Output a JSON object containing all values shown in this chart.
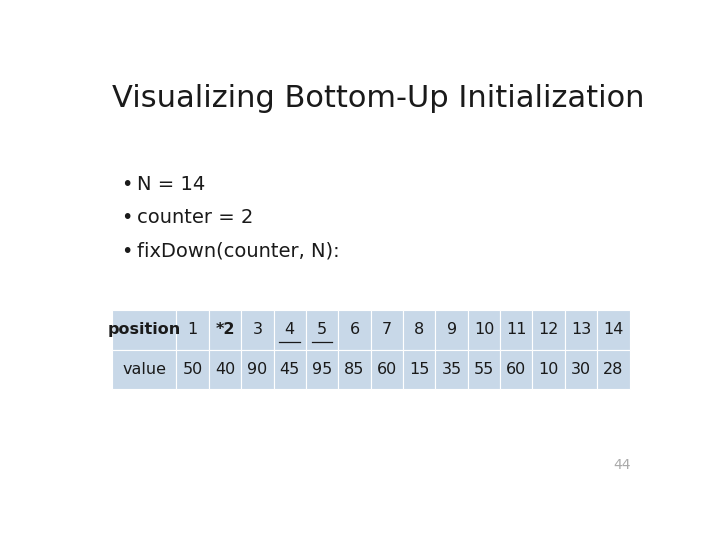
{
  "title": "Visualizing Bottom-Up Initialization",
  "bullet_texts": [
    "N = 14",
    "counter = 2",
    "fixDown(counter, N):"
  ],
  "positions": [
    "position",
    "1",
    "*2",
    "3",
    "4",
    "5",
    "6",
    "7",
    "8",
    "9",
    "10",
    "11",
    "12",
    "13",
    "14"
  ],
  "values": [
    "value",
    "50",
    "40",
    "90",
    "45",
    "95",
    "85",
    "60",
    "15",
    "35",
    "55",
    "60",
    "10",
    "30",
    "28"
  ],
  "underlined_col_indices": [
    4,
    5
  ],
  "table_bg": "#c8d8e8",
  "page_number": "44",
  "bg_color": "#ffffff",
  "title_fontsize": 22,
  "bullet_fontsize": 14,
  "table_fontsize": 11.5
}
